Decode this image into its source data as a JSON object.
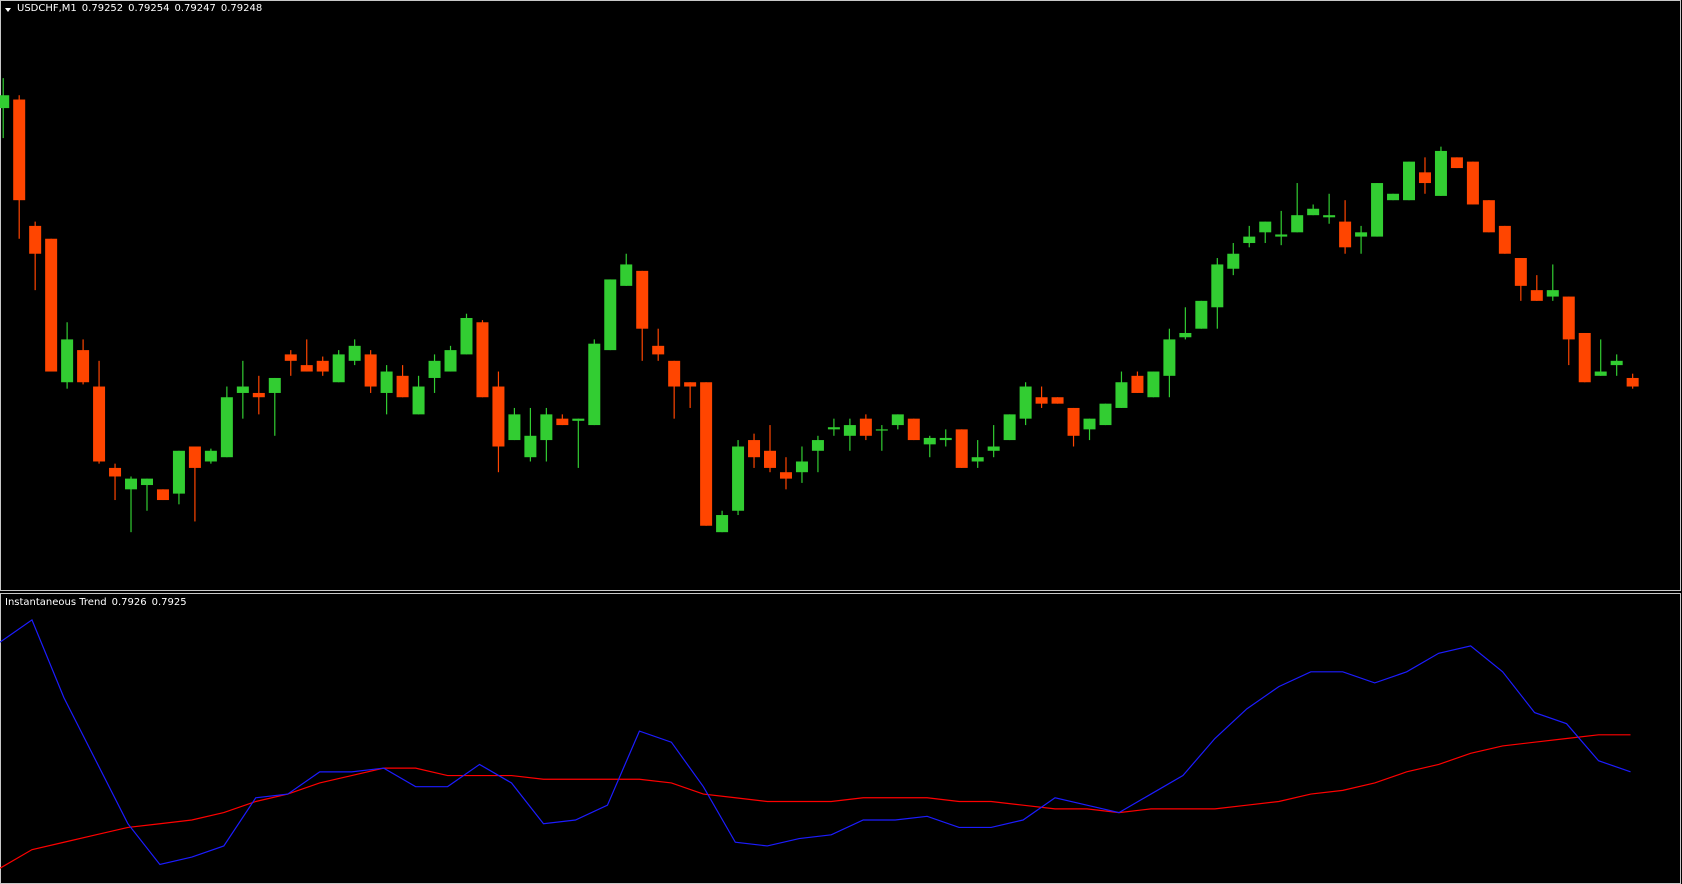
{
  "chart_data": [
    {
      "type": "candlestick",
      "title": "USDCHF,M1",
      "up_color": "#32cd32",
      "down_color": "#ff4500",
      "ylim": [
        0.79153,
        0.79428
      ],
      "open": [
        0.79378,
        0.79382,
        0.79323,
        0.79317,
        0.7925,
        0.79265,
        0.79248,
        0.7921,
        0.792,
        0.79202,
        0.792,
        0.79198,
        0.7922,
        0.79213,
        0.79215,
        0.79245,
        0.79245,
        0.79245,
        0.79263,
        0.79258,
        0.7926,
        0.7925,
        0.7926,
        0.79263,
        0.79245,
        0.79253,
        0.79235,
        0.79252,
        0.79255,
        0.79263,
        0.79278,
        0.79248,
        0.79223,
        0.79215,
        0.79223,
        0.79233,
        0.79232,
        0.7923,
        0.79265,
        0.79295,
        0.79302,
        0.79267,
        0.7926,
        0.7925,
        0.7925,
        0.7918,
        0.7919,
        0.79223,
        0.79218,
        0.79208,
        0.79208,
        0.79218,
        0.79228,
        0.79225,
        0.79233,
        0.79228,
        0.7923,
        0.79233,
        0.79221,
        0.79223,
        0.79228,
        0.79213,
        0.79218,
        0.79223,
        0.79233,
        0.79243,
        0.79243,
        0.79238,
        0.79228,
        0.7923,
        0.79238,
        0.79253,
        0.79243,
        0.79253,
        0.79271,
        0.79275,
        0.79285,
        0.79303,
        0.79315,
        0.7932,
        0.79318,
        0.7932,
        0.79328,
        0.79327,
        0.79325,
        0.79318,
        0.79318,
        0.79335,
        0.79335,
        0.79348,
        0.79337,
        0.79355,
        0.79353,
        0.79335,
        0.79323,
        0.79308,
        0.79293,
        0.7929,
        0.7929,
        0.79273,
        0.79253,
        0.79258,
        0.79252
      ],
      "high": [
        0.79392,
        0.79384,
        0.79325,
        0.79317,
        0.79278,
        0.7927,
        0.7926,
        0.79212,
        0.79206,
        0.79205,
        0.792,
        0.79218,
        0.7922,
        0.79219,
        0.79248,
        0.7926,
        0.79253,
        0.79252,
        0.79265,
        0.7927,
        0.79262,
        0.79265,
        0.7927,
        0.79265,
        0.79258,
        0.79258,
        0.79253,
        0.79263,
        0.79267,
        0.79282,
        0.79279,
        0.79255,
        0.79238,
        0.79238,
        0.79238,
        0.79235,
        0.79233,
        0.7927,
        0.79298,
        0.7931,
        0.79302,
        0.79275,
        0.7926,
        0.7925,
        0.7925,
        0.7919,
        0.79223,
        0.79226,
        0.7923,
        0.79215,
        0.7922,
        0.79225,
        0.79233,
        0.79233,
        0.79235,
        0.7923,
        0.79235,
        0.79233,
        0.79225,
        0.79228,
        0.79228,
        0.79223,
        0.7923,
        0.79235,
        0.7925,
        0.79248,
        0.79243,
        0.79238,
        0.79233,
        0.7924,
        0.79255,
        0.79255,
        0.79255,
        0.79275,
        0.79285,
        0.79288,
        0.79308,
        0.79315,
        0.79323,
        0.79325,
        0.7933,
        0.79343,
        0.79333,
        0.79338,
        0.79335,
        0.79323,
        0.79343,
        0.79338,
        0.79353,
        0.79355,
        0.7936,
        0.79355,
        0.79353,
        0.79335,
        0.79323,
        0.79308,
        0.793,
        0.79305,
        0.7929,
        0.79273,
        0.7927,
        0.79263,
        0.79254
      ],
      "low": [
        0.79364,
        0.79317,
        0.79293,
        0.79255,
        0.79247,
        0.79249,
        0.79212,
        0.79195,
        0.7918,
        0.7919,
        0.79195,
        0.79193,
        0.79185,
        0.79212,
        0.79215,
        0.79233,
        0.79235,
        0.79225,
        0.79253,
        0.79255,
        0.79253,
        0.7925,
        0.79258,
        0.79245,
        0.79235,
        0.79243,
        0.79235,
        0.79245,
        0.79255,
        0.79263,
        0.79243,
        0.79208,
        0.79223,
        0.79213,
        0.79213,
        0.7923,
        0.7921,
        0.7923,
        0.79265,
        0.79295,
        0.7926,
        0.7926,
        0.79233,
        0.79238,
        0.79183,
        0.7918,
        0.79188,
        0.7921,
        0.79208,
        0.792,
        0.79203,
        0.79208,
        0.79225,
        0.79218,
        0.79223,
        0.79218,
        0.79228,
        0.79223,
        0.79215,
        0.7922,
        0.7921,
        0.7921,
        0.79215,
        0.79223,
        0.7923,
        0.79238,
        0.7924,
        0.7922,
        0.79223,
        0.7923,
        0.79238,
        0.79245,
        0.79243,
        0.79243,
        0.7927,
        0.79275,
        0.79275,
        0.793,
        0.79313,
        0.79315,
        0.79314,
        0.7932,
        0.79328,
        0.79324,
        0.7931,
        0.7931,
        0.79318,
        0.79335,
        0.79335,
        0.79338,
        0.79337,
        0.7935,
        0.79333,
        0.7932,
        0.7931,
        0.79288,
        0.79288,
        0.79288,
        0.79258,
        0.7925,
        0.79253,
        0.79253,
        0.79247
      ],
      "close": [
        0.79384,
        0.79335,
        0.7931,
        0.79255,
        0.7927,
        0.7925,
        0.79213,
        0.79206,
        0.79205,
        0.79205,
        0.79195,
        0.79218,
        0.7921,
        0.79218,
        0.79243,
        0.79248,
        0.79243,
        0.79252,
        0.7926,
        0.79255,
        0.79255,
        0.79263,
        0.79267,
        0.79248,
        0.79255,
        0.79243,
        0.79248,
        0.7926,
        0.79265,
        0.7928,
        0.79243,
        0.7922,
        0.79235,
        0.79225,
        0.79235,
        0.7923,
        0.79233,
        0.79268,
        0.79298,
        0.79305,
        0.79275,
        0.79263,
        0.79248,
        0.79248,
        0.79183,
        0.79188,
        0.7922,
        0.79215,
        0.7921,
        0.79205,
        0.79213,
        0.79223,
        0.79229,
        0.7923,
        0.79225,
        0.79228,
        0.79235,
        0.79223,
        0.79224,
        0.79224,
        0.7921,
        0.79215,
        0.7922,
        0.79235,
        0.79248,
        0.7924,
        0.7924,
        0.79225,
        0.79233,
        0.7924,
        0.7925,
        0.79245,
        0.79255,
        0.7927,
        0.79273,
        0.79288,
        0.79305,
        0.7931,
        0.79318,
        0.79325,
        0.79319,
        0.79328,
        0.79331,
        0.79328,
        0.79313,
        0.7932,
        0.79343,
        0.79338,
        0.79353,
        0.79343,
        0.79358,
        0.7935,
        0.79333,
        0.7932,
        0.7931,
        0.79295,
        0.79288,
        0.79293,
        0.7927,
        0.7925,
        0.79255,
        0.7926,
        0.79248
      ]
    },
    {
      "type": "line",
      "title": "Instantaneous Trend",
      "title_values": [
        0.7926,
        0.7925
      ],
      "ylim": [
        0.79222,
        0.793
      ],
      "series": [
        {
          "color": "#ff0000",
          "values": [
            0.79226,
            0.79231,
            0.79233,
            0.79235,
            0.79237,
            0.79238,
            0.79239,
            0.79241,
            0.79244,
            0.79246,
            0.79249,
            0.79251,
            0.79253,
            0.79253,
            0.79251,
            0.79251,
            0.79251,
            0.7925,
            0.7925,
            0.7925,
            0.7925,
            0.79249,
            0.79246,
            0.79245,
            0.79244,
            0.79244,
            0.79244,
            0.79245,
            0.79245,
            0.79245,
            0.79244,
            0.79244,
            0.79243,
            0.79242,
            0.79242,
            0.79241,
            0.79242,
            0.79242,
            0.79242,
            0.79243,
            0.79244,
            0.79246,
            0.79247,
            0.79249,
            0.79252,
            0.79254,
            0.79257,
            0.79259,
            0.7926,
            0.79261,
            0.79262,
            0.79262
          ]
        },
        {
          "color": "#1c1cff",
          "values": [
            0.79287,
            0.79293,
            0.79272,
            0.79255,
            0.79238,
            0.79227,
            0.79229,
            0.79232,
            0.79245,
            0.79246,
            0.79252,
            0.79252,
            0.79253,
            0.79248,
            0.79248,
            0.79254,
            0.79249,
            0.79238,
            0.79239,
            0.79243,
            0.79263,
            0.7926,
            0.79248,
            0.79233,
            0.79232,
            0.79234,
            0.79235,
            0.79239,
            0.79239,
            0.7924,
            0.79237,
            0.79237,
            0.79239,
            0.79245,
            0.79243,
            0.79241,
            0.79246,
            0.79251,
            0.79261,
            0.79269,
            0.79275,
            0.79279,
            0.79279,
            0.79276,
            0.79279,
            0.79284,
            0.79286,
            0.79279,
            0.79268,
            0.79265,
            0.79255,
            0.79252
          ]
        }
      ]
    }
  ]
}
